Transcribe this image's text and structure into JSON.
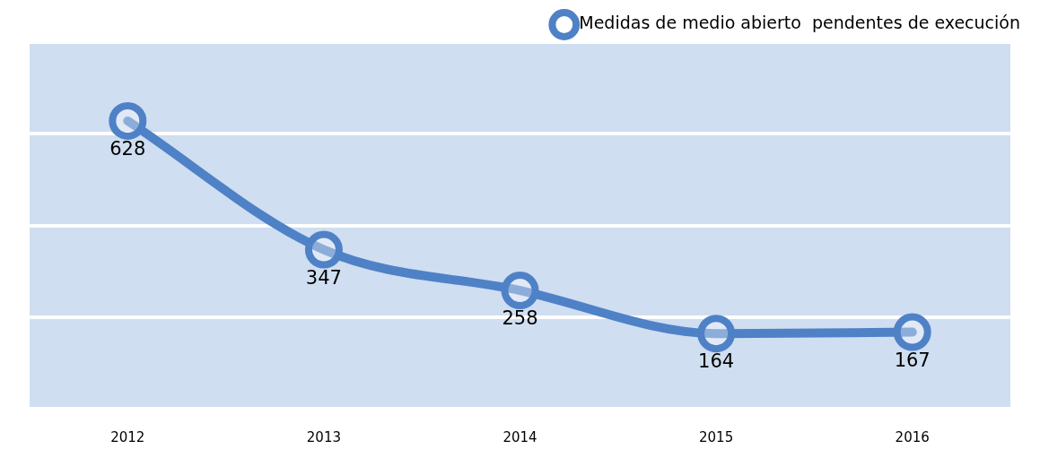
{
  "chart_data": {
    "type": "line",
    "categories": [
      "2012",
      "2013",
      "2014",
      "2015",
      "2016"
    ],
    "series": [
      {
        "name": "Medidas de medio abierto  pendentes de execución",
        "color": "#4f81c7",
        "values": [
          628,
          347,
          258,
          164,
          167
        ]
      }
    ],
    "ylim": [
      0,
      800
    ],
    "yticks": [
      {
        "value": 0,
        "label": null
      },
      {
        "value": 200,
        "label": null
      },
      {
        "value": 400,
        "label": null
      },
      {
        "value": 600,
        "label": null
      },
      {
        "value": 800,
        "label": null
      }
    ],
    "tick_labels": "x",
    "grid": "y",
    "legend": "top right",
    "marker": "circle",
    "line_style": "solid",
    "data_labels": true
  }
}
